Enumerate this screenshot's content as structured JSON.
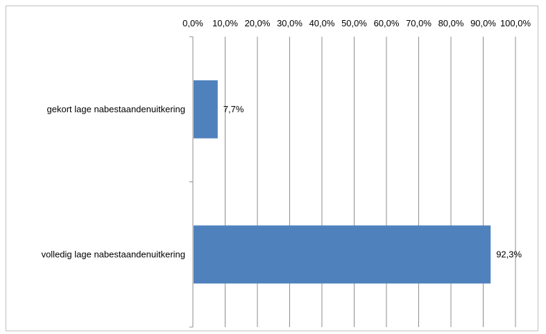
{
  "chart_data": {
    "type": "bar",
    "orientation": "horizontal",
    "title": "",
    "xlabel": "",
    "ylabel": "",
    "xlim": [
      0,
      100
    ],
    "x_ticks": [
      "0,0%",
      "10,0%",
      "20,0%",
      "30,0%",
      "40,0%",
      "50,0%",
      "60,0%",
      "70,0%",
      "80,0%",
      "90,0%",
      "100,0%"
    ],
    "x_axis_position": "top",
    "grid": true,
    "legend": "none",
    "bar_color": "#4f81bd",
    "categories": [
      "gekort lage nabestaandenuitkering",
      "volledig lage nabestaandenuitkering"
    ],
    "values": [
      7.7,
      92.3
    ],
    "data_labels": [
      "7,7%",
      "92,3%"
    ]
  }
}
